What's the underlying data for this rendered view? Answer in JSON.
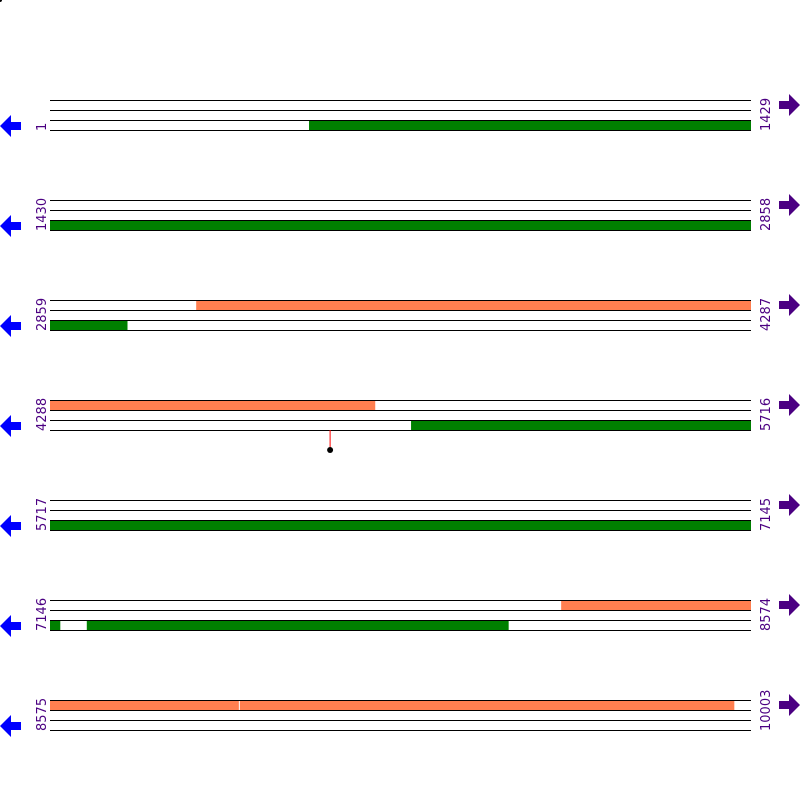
{
  "colors": {
    "forward_feature": "#ff7f50",
    "reverse_feature": "#008000",
    "left_arrow": "#0000ff",
    "right_arrow": "#4b0082",
    "marker_line": "#ff0000",
    "marker_dot": "#000000"
  },
  "icons": {
    "left": "arrow-left-icon",
    "right": "arrow-right-icon"
  },
  "rows": [
    {
      "start": "1",
      "end": "1429",
      "features": [
        {
          "strand": "reverse",
          "from": 529,
          "to": 1429
        }
      ]
    },
    {
      "start": "1430",
      "end": "2858",
      "features": [
        {
          "strand": "reverse",
          "from": 1430,
          "to": 2858
        }
      ]
    },
    {
      "start": "2859",
      "end": "4287",
      "features": [
        {
          "strand": "forward",
          "from": 3157,
          "to": 4287
        },
        {
          "strand": "reverse",
          "from": 2859,
          "to": 3016
        }
      ]
    },
    {
      "start": "4288",
      "end": "5716",
      "features": [
        {
          "strand": "forward",
          "from": 4288,
          "to": 4950
        },
        {
          "strand": "reverse",
          "from": 5024,
          "to": 5716
        }
      ],
      "markers": [
        4859
      ]
    },
    {
      "start": "5717",
      "end": "7145",
      "features": [
        {
          "strand": "reverse",
          "from": 5717,
          "to": 7145
        }
      ]
    },
    {
      "start": "7146",
      "end": "8574",
      "features": [
        {
          "strand": "forward",
          "from": 8188,
          "to": 8574
        },
        {
          "strand": "reverse",
          "from": 7146,
          "to": 7166
        },
        {
          "strand": "reverse",
          "from": 7221,
          "to": 8080
        }
      ]
    },
    {
      "start": "8575",
      "end": "10003",
      "features": [
        {
          "strand": "forward",
          "from": 8575,
          "to": 8959
        },
        {
          "strand": "forward",
          "from": 8962,
          "to": 9969
        }
      ]
    }
  ]
}
